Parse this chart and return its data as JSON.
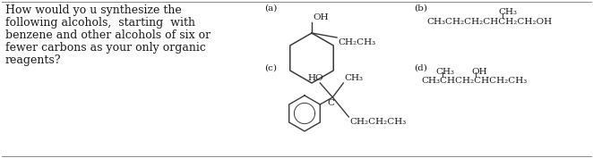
{
  "background_color": "#ffffff",
  "border_color": "#000000",
  "question_text": [
    "How would yo u synthesize the",
    "following alcohols,  starting  with",
    "benzene and other alcohols of six or",
    "fewer carbons as your only organic",
    "reagents?"
  ],
  "label_a": "(a)",
  "label_b": "(b)",
  "label_c": "(c)",
  "label_d": "(d)",
  "text_color": "#1a1a1a",
  "font_size": 9.0
}
